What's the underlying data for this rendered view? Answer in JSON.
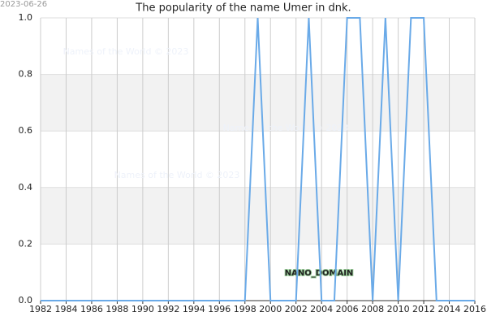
{
  "chart_data": {
    "type": "line",
    "title": "The popularity of the name Umer in dnk.",
    "date_stamp": "2023-06-26",
    "watermarks": [
      "Names of the World © 2023",
      "Names of the World © 2023",
      "Names of the World © 2023"
    ],
    "domain_label": "NANO_DOMAIN",
    "x": [
      1982,
      1983,
      1984,
      1985,
      1986,
      1987,
      1988,
      1989,
      1990,
      1991,
      1992,
      1993,
      1994,
      1995,
      1996,
      1997,
      1998,
      1999,
      2000,
      2001,
      2002,
      2003,
      2004,
      2005,
      2006,
      2007,
      2008,
      2009,
      2010,
      2011,
      2012,
      2013,
      2014,
      2015,
      2016
    ],
    "series": [
      {
        "color": "#6aaae8",
        "values": [
          0,
          0,
          0,
          0,
          0,
          0,
          0,
          0,
          0,
          0,
          0,
          0,
          0,
          0,
          0,
          0,
          0,
          1,
          0,
          0,
          0,
          1,
          0,
          0,
          1,
          1,
          0,
          1,
          0,
          1,
          1,
          0,
          0,
          0,
          0
        ]
      }
    ],
    "xlim": [
      1982,
      2016
    ],
    "xticks": [
      1982,
      1984,
      1986,
      1988,
      1990,
      1992,
      1994,
      1996,
      1998,
      2000,
      2002,
      2004,
      2006,
      2008,
      2010,
      2012,
      2014,
      2016
    ],
    "ylim": [
      0,
      1
    ],
    "yticks": [
      {
        "value": 0,
        "label": "0.0"
      },
      0.2,
      0.4,
      0.6,
      0.8,
      {
        "value": 1,
        "label": "1.0"
      }
    ],
    "grid": true
  }
}
